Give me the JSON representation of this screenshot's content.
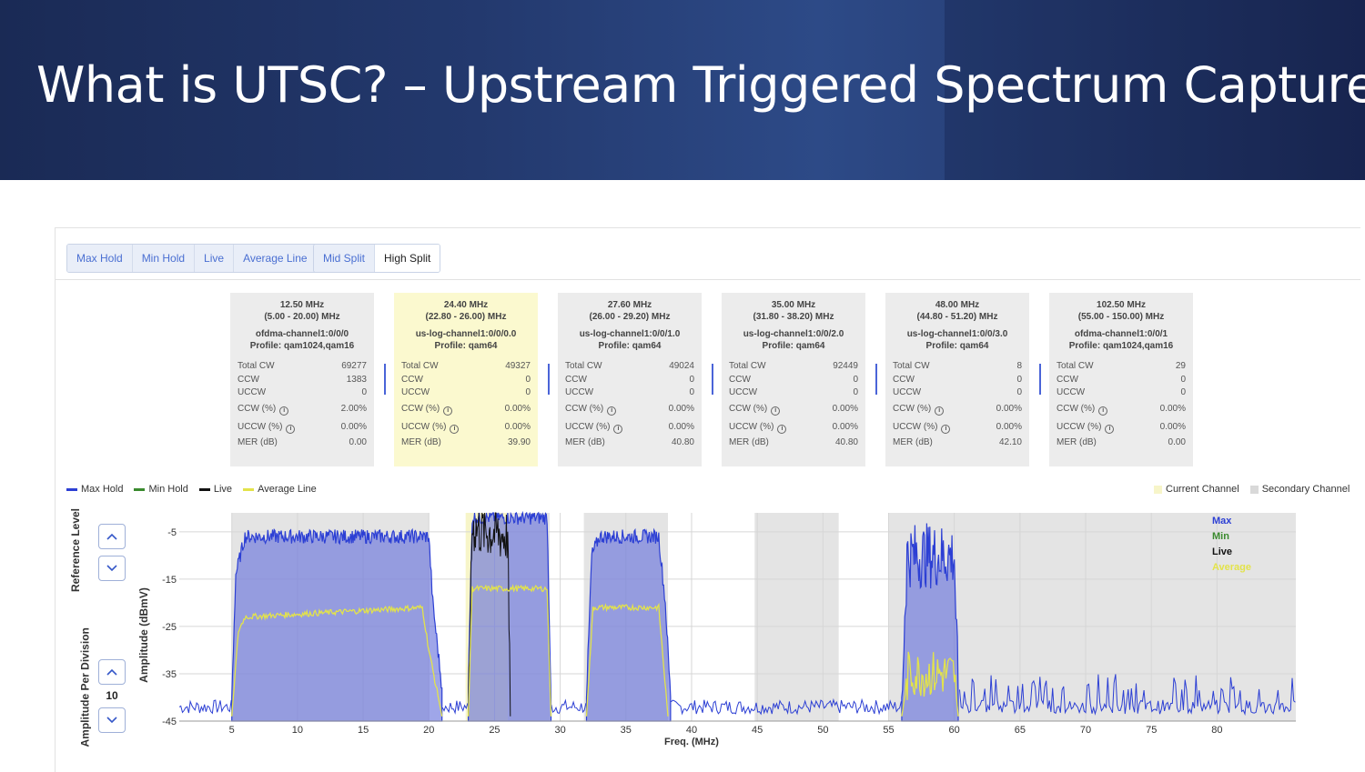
{
  "slide": {
    "title": "What is UTSC? – Upstream Triggered Spectrum Capture"
  },
  "trace_buttons": [
    "Max Hold",
    "Min Hold",
    "Live",
    "Average Line"
  ],
  "split_buttons": [
    {
      "label": "Mid Split",
      "active": false
    },
    {
      "label": "High Split",
      "active": true
    }
  ],
  "channels": [
    {
      "center": "12.50 MHz",
      "range": "(5.00 - 20.00) MHz",
      "name": "ofdma-channel1:0/0/0",
      "profile": "Profile: qam1024,qam16",
      "total_cw": "69277",
      "ccw": "1383",
      "uccw": "0",
      "ccw_pct": "2.00%",
      "uccw_pct": "0.00%",
      "mer": "0.00",
      "current": false
    },
    {
      "center": "24.40 MHz",
      "range": "(22.80 - 26.00) MHz",
      "name": "us-log-channel1:0/0/0.0",
      "profile": "Profile: qam64",
      "total_cw": "49327",
      "ccw": "0",
      "uccw": "0",
      "ccw_pct": "0.00%",
      "uccw_pct": "0.00%",
      "mer": "39.90",
      "current": true
    },
    {
      "center": "27.60 MHz",
      "range": "(26.00 - 29.20) MHz",
      "name": "us-log-channel1:0/0/1.0",
      "profile": "Profile: qam64",
      "total_cw": "49024",
      "ccw": "0",
      "uccw": "0",
      "ccw_pct": "0.00%",
      "uccw_pct": "0.00%",
      "mer": "40.80",
      "current": false
    },
    {
      "center": "35.00 MHz",
      "range": "(31.80 - 38.20) MHz",
      "name": "us-log-channel1:0/0/2.0",
      "profile": "Profile: qam64",
      "total_cw": "92449",
      "ccw": "0",
      "uccw": "0",
      "ccw_pct": "0.00%",
      "uccw_pct": "0.00%",
      "mer": "40.80",
      "current": false
    },
    {
      "center": "48.00 MHz",
      "range": "(44.80 - 51.20) MHz",
      "name": "us-log-channel1:0/0/3.0",
      "profile": "Profile: qam64",
      "total_cw": "8",
      "ccw": "0",
      "uccw": "0",
      "ccw_pct": "0.00%",
      "uccw_pct": "0.00%",
      "mer": "42.10",
      "current": false
    },
    {
      "center": "102.50 MHz",
      "range": "(55.00 - 150.00) MHz",
      "name": "ofdma-channel1:0/0/1",
      "profile": "Profile: qam1024,qam16",
      "total_cw": "29",
      "ccw": "0",
      "uccw": "0",
      "ccw_pct": "0.00%",
      "uccw_pct": "0.00%",
      "mer": "0.00",
      "current": false
    }
  ],
  "stat_labels": {
    "total_cw": "Total CW",
    "ccw": "CCW",
    "uccw": "UCCW",
    "ccw_pct": "CCW (%)",
    "uccw_pct": "UCCW (%)",
    "mer": "MER (dB)",
    "info_glyph": "i"
  },
  "legend": {
    "series": [
      {
        "name": "Max Hold",
        "color": "#2c3fd4"
      },
      {
        "name": "Min Hold",
        "color": "#3a8a2e"
      },
      {
        "name": "Live",
        "color": "#111111"
      },
      {
        "name": "Average Line",
        "color": "#e3e34a"
      }
    ],
    "regions": [
      {
        "name": "Current Channel",
        "color": "#f7f5c9"
      },
      {
        "name": "Secondary Channel",
        "color": "#d9d9d9"
      }
    ]
  },
  "controls": {
    "reference_level_label": "Reference Level",
    "amplitude_per_division_label": "Amplitude Per Division",
    "amplitude_per_division_value": "10"
  },
  "chart_data": {
    "type": "area",
    "xlabel": "Freq. (MHz)",
    "ylabel": "Amplitude (dBmV)",
    "xlim": [
      1,
      86
    ],
    "ylim": [
      -45,
      -1
    ],
    "x_ticks": [
      5,
      10,
      15,
      20,
      25,
      30,
      35,
      40,
      45,
      50,
      55,
      60,
      65,
      70,
      75,
      80
    ],
    "y_ticks": [
      -5,
      -15,
      -25,
      -35,
      -45
    ],
    "current_channel": [
      22.8,
      26.0
    ],
    "secondary_channels": [
      [
        5.0,
        20.0
      ],
      [
        26.0,
        29.2
      ],
      [
        31.8,
        38.2
      ],
      [
        44.8,
        51.2
      ],
      [
        55.0,
        86.0
      ]
    ],
    "inline_legend": [
      {
        "label": "Max",
        "color": "#2c3fd4"
      },
      {
        "label": "Min",
        "color": "#3a8a2e"
      },
      {
        "label": "Live",
        "color": "#111111"
      },
      {
        "label": "Average",
        "color": "#e3e34a"
      }
    ],
    "max_hold_segments": [
      {
        "x": [
          5.0,
          5.3,
          6.0,
          20.0,
          20.3,
          21.0
        ],
        "y": [
          -40,
          -14,
          -6,
          -6,
          -20,
          -38
        ]
      },
      {
        "x": [
          23.0,
          23.3,
          26.0,
          26.3,
          29.0,
          29.3
        ],
        "y": [
          -38,
          -2,
          -2,
          -2,
          -2,
          -40
        ]
      },
      {
        "x": [
          32.0,
          32.4,
          33.0,
          37.5,
          38.0,
          38.4
        ],
        "y": [
          -40,
          -10,
          -6,
          -6,
          -20,
          -40
        ]
      },
      {
        "x": [
          56.0,
          56.4,
          60.0,
          60.3
        ],
        "y": [
          -40,
          -10,
          -10,
          -40
        ]
      }
    ],
    "average_line_segments": [
      {
        "x": [
          5.0,
          5.5,
          6.0,
          19.5,
          20.0,
          21.0
        ],
        "y": [
          -44,
          -26,
          -23,
          -21,
          -30,
          -44
        ]
      },
      {
        "x": [
          23.0,
          23.3,
          26.0,
          29.0,
          29.3
        ],
        "y": [
          -44,
          -17,
          -17,
          -17,
          -44
        ]
      },
      {
        "x": [
          32.0,
          32.5,
          37.5,
          38.2
        ],
        "y": [
          -44,
          -21,
          -21,
          -44
        ]
      },
      {
        "x": [
          56.0,
          56.5,
          60.0,
          60.3
        ],
        "y": [
          -44,
          -35,
          -35,
          -44
        ]
      }
    ],
    "live_segment": {
      "x": [
        23.0,
        23.3,
        26.0,
        26.2
      ],
      "y": [
        -44,
        -4,
        -6,
        -44
      ]
    },
    "noise_floor": -42
  }
}
